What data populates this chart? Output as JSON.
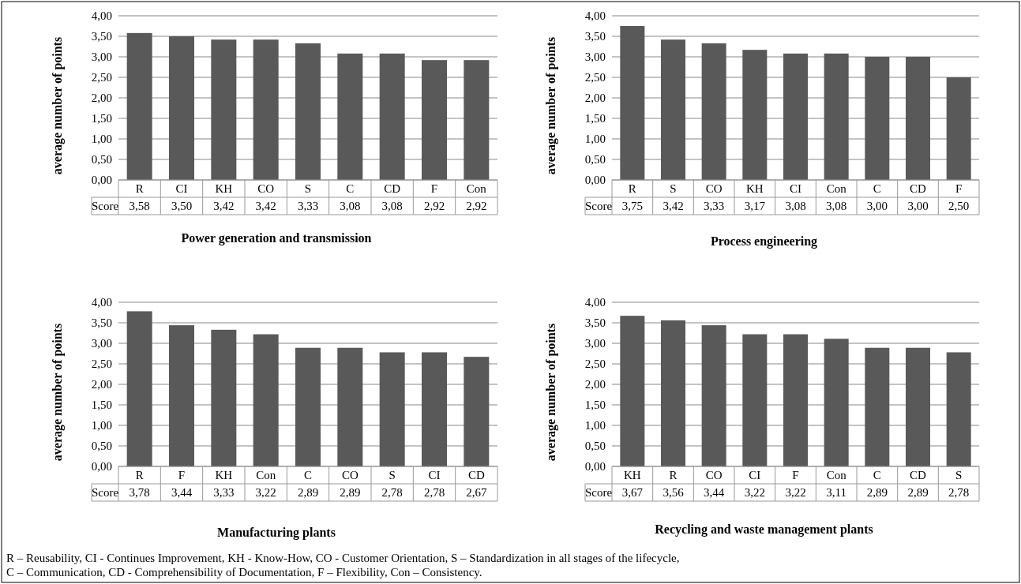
{
  "chart_data": [
    {
      "type": "bar",
      "title": "Power generation and transmission",
      "ylabel": "average number of points",
      "categories": [
        "R",
        "CI",
        "KH",
        "CO",
        "S",
        "C",
        "CD",
        "F",
        "Con"
      ],
      "series": [
        {
          "name": "Score",
          "color": "#595959",
          "values": [
            3.58,
            3.5,
            3.42,
            3.42,
            3.33,
            3.08,
            3.08,
            2.92,
            2.92
          ],
          "value_labels": [
            "3,58",
            "3,50",
            "3,42",
            "3,42",
            "3,33",
            "3,08",
            "3,08",
            "2,92",
            "2,92"
          ]
        }
      ],
      "ylim": [
        0,
        4
      ],
      "yticks": [
        {
          "value": 0,
          "label": "0,00"
        },
        {
          "value": 0.5,
          "label": "0,50"
        },
        {
          "value": 1,
          "label": "1,00"
        },
        {
          "value": 1.5,
          "label": "1,50"
        },
        {
          "value": 2,
          "label": "2,00"
        },
        {
          "value": 2.5,
          "label": "2,50"
        },
        {
          "value": 3,
          "label": "3,00"
        },
        {
          "value": 3.5,
          "label": "3,50"
        },
        {
          "value": 4,
          "label": "4,00"
        }
      ],
      "grid": "y"
    },
    {
      "type": "bar",
      "title": "Process engineering",
      "ylabel": "average number of points",
      "categories": [
        "R",
        "S",
        "CO",
        "KH",
        "CI",
        "Con",
        "C",
        "CD",
        "F"
      ],
      "series": [
        {
          "name": "Score",
          "color": "#595959",
          "values": [
            3.75,
            3.42,
            3.33,
            3.17,
            3.08,
            3.08,
            3,
            3,
            2.5
          ],
          "value_labels": [
            "3,75",
            "3,42",
            "3,33",
            "3,17",
            "3,08",
            "3,08",
            "3,00",
            "3,00",
            "2,50"
          ]
        }
      ],
      "ylim": [
        0,
        4
      ],
      "yticks": [
        {
          "value": 0,
          "label": "0,00"
        },
        {
          "value": 0.5,
          "label": "0,50"
        },
        {
          "value": 1,
          "label": "1,00"
        },
        {
          "value": 1.5,
          "label": "1,50"
        },
        {
          "value": 2,
          "label": "2,00"
        },
        {
          "value": 2.5,
          "label": "2,50"
        },
        {
          "value": 3,
          "label": "3,00"
        },
        {
          "value": 3.5,
          "label": "3,50"
        },
        {
          "value": 4,
          "label": "4,00"
        }
      ],
      "grid": "y"
    },
    {
      "type": "bar",
      "title": "Manufacturing plants",
      "ylabel": "average number of points",
      "categories": [
        "R",
        "F",
        "KH",
        "Con",
        "C",
        "CO",
        "S",
        "CI",
        "CD"
      ],
      "series": [
        {
          "name": "Score",
          "color": "#595959",
          "values": [
            3.78,
            3.44,
            3.33,
            3.22,
            2.89,
            2.89,
            2.78,
            2.78,
            2.67
          ],
          "value_labels": [
            "3,78",
            "3,44",
            "3,33",
            "3,22",
            "2,89",
            "2,89",
            "2,78",
            "2,78",
            "2,67"
          ]
        }
      ],
      "ylim": [
        0,
        4
      ],
      "yticks": [
        {
          "value": 0,
          "label": "0,00"
        },
        {
          "value": 0.5,
          "label": "0,50"
        },
        {
          "value": 1,
          "label": "1,00"
        },
        {
          "value": 1.5,
          "label": "1,50"
        },
        {
          "value": 2,
          "label": "2,00"
        },
        {
          "value": 2.5,
          "label": "2,50"
        },
        {
          "value": 3,
          "label": "3,00"
        },
        {
          "value": 3.5,
          "label": "3,50"
        },
        {
          "value": 4,
          "label": "4,00"
        }
      ],
      "grid": "y"
    },
    {
      "type": "bar",
      "title": "Recycling and waste management plants",
      "ylabel": "average number of points",
      "categories": [
        "KH",
        "R",
        "CO",
        "CI",
        "F",
        "Con",
        "C",
        "CD",
        "S"
      ],
      "series": [
        {
          "name": "Score",
          "color": "#595959",
          "values": [
            3.67,
            3.56,
            3.44,
            3.22,
            3.22,
            3.11,
            2.89,
            2.89,
            2.78
          ],
          "value_labels": [
            "3,67",
            "3,56",
            "3,44",
            "3,22",
            "3,22",
            "3,11",
            "2,89",
            "2,89",
            "2,78"
          ]
        }
      ],
      "ylim": [
        0,
        4
      ],
      "yticks": [
        {
          "value": 0,
          "label": "0,00"
        },
        {
          "value": 0.5,
          "label": "0,50"
        },
        {
          "value": 1,
          "label": "1,00"
        },
        {
          "value": 1.5,
          "label": "1,50"
        },
        {
          "value": 2,
          "label": "2,00"
        },
        {
          "value": 2.5,
          "label": "2,50"
        },
        {
          "value": 3,
          "label": "3,00"
        },
        {
          "value": 3.5,
          "label": "3,50"
        },
        {
          "value": 4,
          "label": "4,00"
        }
      ],
      "grid": "y",
      "annotations": [
        "R – Reusability, CI - Continues Improvement, KH - Know-How, CO - Customer Orientation, S – Standardization in all stages of the lifecycle,",
        "C – Communication, CD - Comprehensibility of Documentation, F – Flexibility, Con – Consistency."
      ]
    }
  ]
}
